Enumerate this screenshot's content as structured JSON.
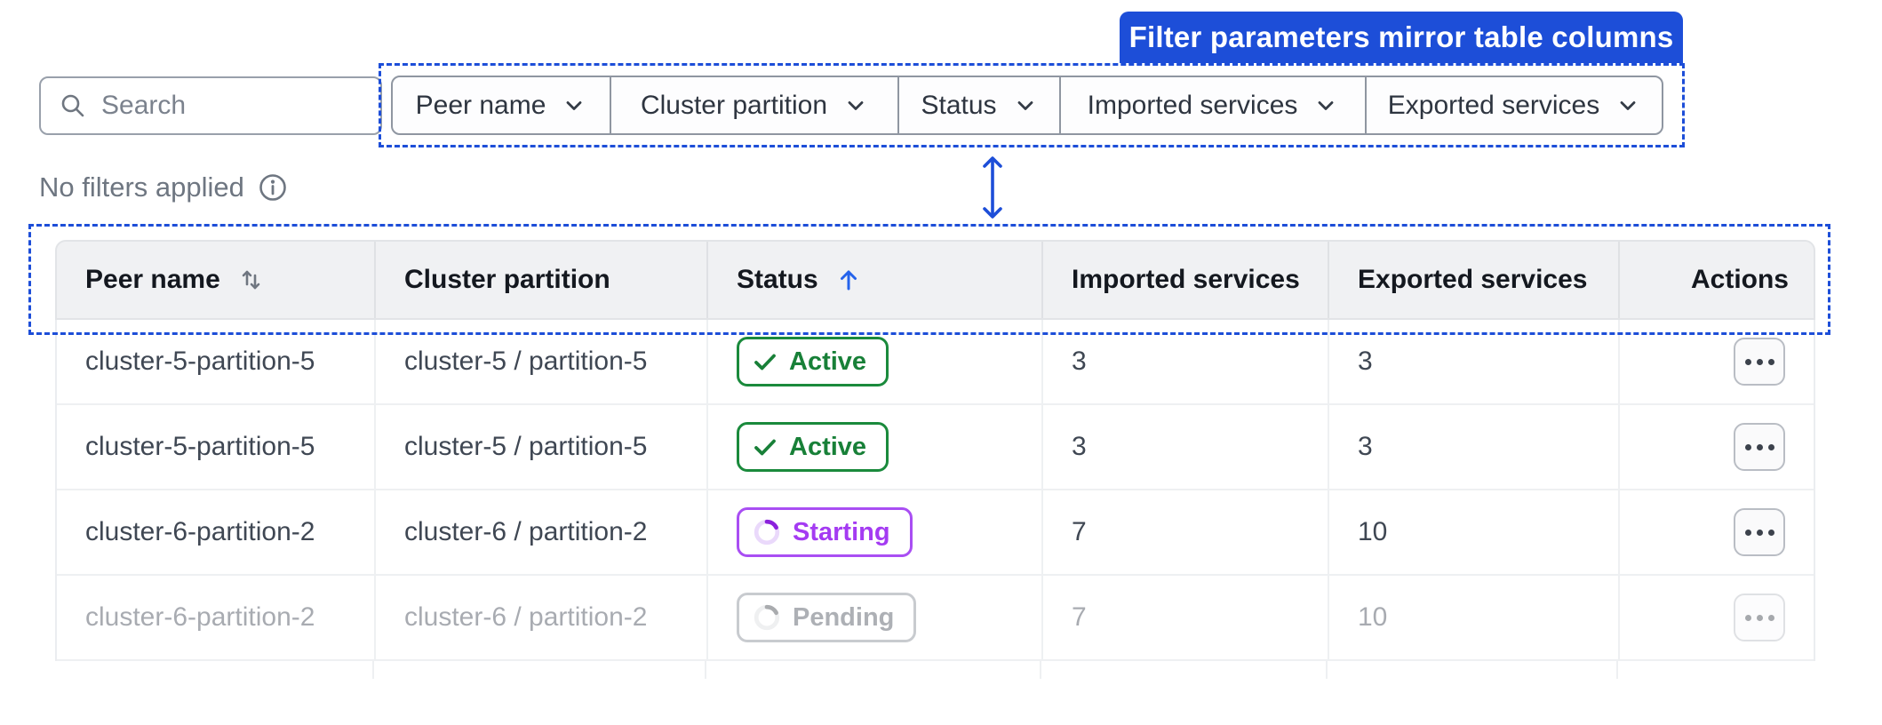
{
  "callout": {
    "label": "Filter parameters mirror table columns"
  },
  "toolbar": {
    "search_placeholder": "Search",
    "filters": [
      {
        "label": "Peer name"
      },
      {
        "label": "Cluster partition"
      },
      {
        "label": "Status"
      },
      {
        "label": "Imported services"
      },
      {
        "label": "Exported services"
      }
    ]
  },
  "filters_status": {
    "label": "No filters applied"
  },
  "table": {
    "columns": [
      {
        "label": "Peer name",
        "sort": "sortable"
      },
      {
        "label": "Cluster partition",
        "sort": "none"
      },
      {
        "label": "Status",
        "sort": "asc"
      },
      {
        "label": "Imported services",
        "sort": "none"
      },
      {
        "label": "Exported services",
        "sort": "none"
      },
      {
        "label": "Actions",
        "sort": "none"
      }
    ],
    "rows": [
      {
        "peer_name": "cluster-5-partition-5",
        "cluster_partition": "cluster-5 / partition-5",
        "status": "Active",
        "status_kind": "active",
        "imported_services": "3",
        "exported_services": "3",
        "muted": false
      },
      {
        "peer_name": "cluster-5-partition-5",
        "cluster_partition": "cluster-5 / partition-5",
        "status": "Active",
        "status_kind": "active",
        "imported_services": "3",
        "exported_services": "3",
        "muted": false
      },
      {
        "peer_name": "cluster-6-partition-2",
        "cluster_partition": "cluster-6 / partition-2",
        "status": "Starting",
        "status_kind": "starting",
        "imported_services": "7",
        "exported_services": "10",
        "muted": false
      },
      {
        "peer_name": "cluster-6-partition-2",
        "cluster_partition": "cluster-6 / partition-2",
        "status": "Pending",
        "status_kind": "pending",
        "imported_services": "7",
        "exported_services": "10",
        "muted": true
      }
    ]
  },
  "colors": {
    "accent_blue": "#1d4ed8",
    "sort_arrow_blue": "#2563eb",
    "active_green": "#188038",
    "starting_purple": "#a43bf2",
    "pending_gray": "#4c525c"
  }
}
